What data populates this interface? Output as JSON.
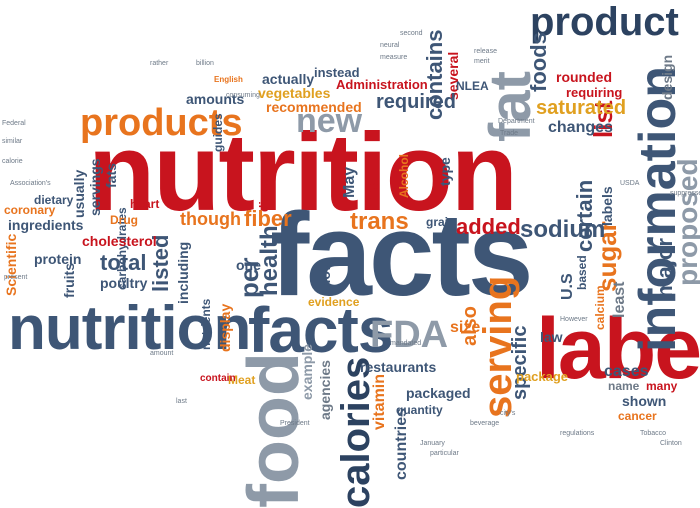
{
  "words": {
    "nutrition_big": "nutrition",
    "nutrition_mid": "nutrition",
    "facts_big": "facts",
    "facts_mid": "facts",
    "label": "label",
    "food": "food",
    "fat": "fat",
    "product": "product",
    "products": "products",
    "information": "information",
    "calories": "calories",
    "fda": "FDA",
    "serving": "serving",
    "new": "new",
    "trans": "trans",
    "sodium": "sodium",
    "saturated": "saturated",
    "changes": "changes",
    "required": "required",
    "list": "list",
    "specific": "specific",
    "added": "added",
    "fiber": "fiber",
    "though": "though",
    "listed": "listed",
    "health": "health",
    "per": "per",
    "total": "total",
    "fruits": "fruits",
    "cholesterol": "cholesterol",
    "protein": "protein",
    "poultry": "poultry",
    "ingredients": "ingredients",
    "coronary": "coronary",
    "dietary": "dietary",
    "usually": "usually",
    "servings": "servings",
    "fats": "fats",
    "guides": "guides",
    "amounts": "amounts",
    "vegetables": "vegetables",
    "recommended": "recommended",
    "actually": "actually",
    "administration": "Administration",
    "instead": "instead",
    "contains": "contains",
    "nlea": "NLEA",
    "several": "several",
    "foods": "foods",
    "rounded": "rounded",
    "requiring": "requiring",
    "proposed": "proposed",
    "design": "design",
    "major": "major",
    "sugar": "sugar",
    "certain": "certain",
    "based": "based",
    "us": "U.S",
    "also": "also",
    "size": "size",
    "evidence": "evidence",
    "restaurants": "restaurants",
    "packaged": "packaged",
    "package": "package",
    "quantity": "quantity",
    "countries": "countries",
    "vitamin": "vitamin",
    "agencies": "agencies",
    "example": "example",
    "show": "show",
    "may": "May",
    "grain": "grain",
    "ttb": "TTB",
    "alcohol": "Alcohol",
    "type": "type",
    "cases": "cases",
    "name": "name",
    "many": "many",
    "shown": "shown",
    "cancer": "cancer",
    "claims": "claims",
    "law": "law",
    "least": "least",
    "including": "including",
    "one": "one",
    "display": "display",
    "nutrients": "nutrients",
    "meat": "Meat",
    "contain": "contain",
    "drug": "Drug",
    "scientific": "Scientific",
    "calcium": "calcium",
    "heart": "heart",
    "disease": "disease",
    "carbohydrates": "carbohydrates",
    "labels": "labels",
    "english": "English"
  }
}
